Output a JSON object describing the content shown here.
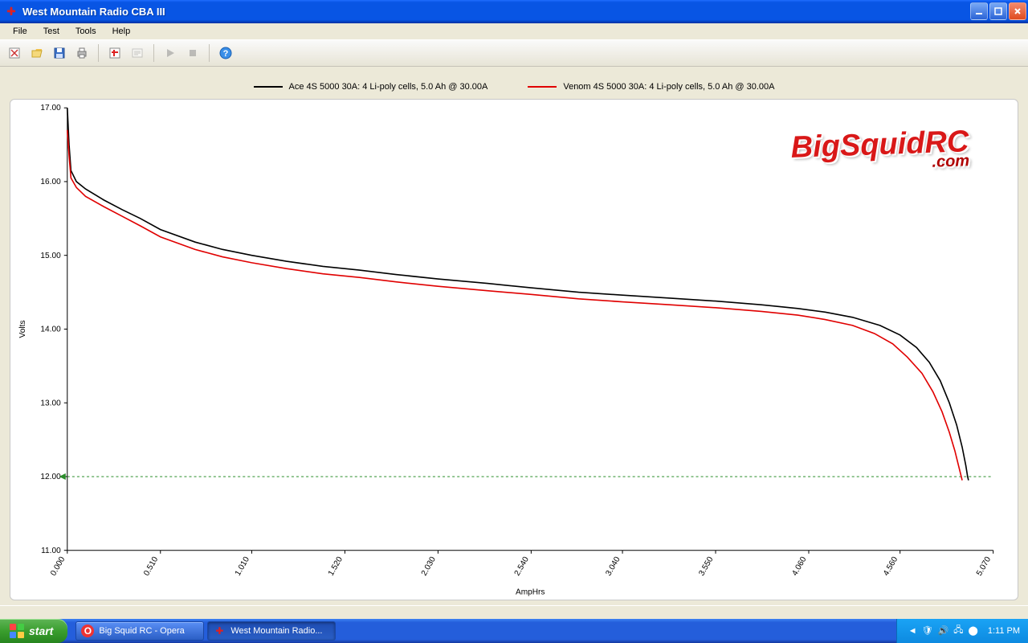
{
  "window": {
    "title": "West Mountain Radio CBA III",
    "menus": [
      "File",
      "Test",
      "Tools",
      "Help"
    ]
  },
  "toolbar": {
    "new": "new",
    "open": "open",
    "save": "save",
    "print": "print",
    "overlay": "overlay",
    "labels": "labels",
    "play": "play",
    "stop": "stop",
    "help": "help"
  },
  "legend": {
    "series": [
      {
        "label": "Ace 4S 5000 30A: 4 Li-poly cells, 5.0 Ah @ 30.00A",
        "color": "#000000"
      },
      {
        "label": "Venom 4S 5000 30A: 4 Li-poly cells, 5.0 Ah @ 30.00A",
        "color": "#e00000"
      }
    ]
  },
  "chart": {
    "type": "line",
    "xlabel": "AmpHrs",
    "ylabel": "Volts",
    "background": "#ffffff",
    "grid_color": "#d9d9d9",
    "cutoff_line_color": "#2a8c2a",
    "cutoff_y": 12.0,
    "xlim": [
      0.0,
      5.07
    ],
    "xticks": [
      0.0,
      0.51,
      1.01,
      1.52,
      2.03,
      2.54,
      3.04,
      3.55,
      4.06,
      4.56,
      5.07
    ],
    "ylim": [
      11.0,
      17.0
    ],
    "yticks": [
      11.0,
      12.0,
      13.0,
      14.0,
      15.0,
      16.0,
      17.0
    ],
    "series": [
      {
        "name": "ace",
        "color": "#000000",
        "width": 1.6,
        "points": [
          [
            0.0,
            17.0
          ],
          [
            0.01,
            16.5
          ],
          [
            0.02,
            16.15
          ],
          [
            0.05,
            16.0
          ],
          [
            0.1,
            15.9
          ],
          [
            0.2,
            15.75
          ],
          [
            0.3,
            15.62
          ],
          [
            0.4,
            15.5
          ],
          [
            0.51,
            15.35
          ],
          [
            0.7,
            15.18
          ],
          [
            0.85,
            15.08
          ],
          [
            1.01,
            15.0
          ],
          [
            1.2,
            14.92
          ],
          [
            1.4,
            14.85
          ],
          [
            1.6,
            14.8
          ],
          [
            1.8,
            14.74
          ],
          [
            2.03,
            14.68
          ],
          [
            2.3,
            14.62
          ],
          [
            2.54,
            14.56
          ],
          [
            2.8,
            14.5
          ],
          [
            3.04,
            14.46
          ],
          [
            3.3,
            14.42
          ],
          [
            3.55,
            14.38
          ],
          [
            3.8,
            14.33
          ],
          [
            4.0,
            14.28
          ],
          [
            4.15,
            14.23
          ],
          [
            4.3,
            14.16
          ],
          [
            4.45,
            14.05
          ],
          [
            4.56,
            13.92
          ],
          [
            4.65,
            13.75
          ],
          [
            4.72,
            13.55
          ],
          [
            4.78,
            13.3
          ],
          [
            4.83,
            13.0
          ],
          [
            4.87,
            12.7
          ],
          [
            4.9,
            12.4
          ],
          [
            4.92,
            12.15
          ],
          [
            4.93,
            12.0
          ],
          [
            4.935,
            11.95
          ]
        ]
      },
      {
        "name": "venom",
        "color": "#e00000",
        "width": 1.6,
        "points": [
          [
            0.0,
            16.7
          ],
          [
            0.01,
            16.35
          ],
          [
            0.02,
            16.05
          ],
          [
            0.05,
            15.92
          ],
          [
            0.1,
            15.8
          ],
          [
            0.2,
            15.66
          ],
          [
            0.3,
            15.53
          ],
          [
            0.4,
            15.4
          ],
          [
            0.51,
            15.25
          ],
          [
            0.7,
            15.08
          ],
          [
            0.85,
            14.98
          ],
          [
            1.01,
            14.9
          ],
          [
            1.2,
            14.82
          ],
          [
            1.4,
            14.75
          ],
          [
            1.6,
            14.7
          ],
          [
            1.8,
            14.64
          ],
          [
            2.03,
            14.58
          ],
          [
            2.3,
            14.52
          ],
          [
            2.54,
            14.47
          ],
          [
            2.8,
            14.41
          ],
          [
            3.04,
            14.37
          ],
          [
            3.3,
            14.33
          ],
          [
            3.55,
            14.29
          ],
          [
            3.8,
            14.24
          ],
          [
            4.0,
            14.19
          ],
          [
            4.15,
            14.13
          ],
          [
            4.3,
            14.05
          ],
          [
            4.42,
            13.94
          ],
          [
            4.52,
            13.8
          ],
          [
            4.6,
            13.62
          ],
          [
            4.68,
            13.4
          ],
          [
            4.74,
            13.15
          ],
          [
            4.79,
            12.88
          ],
          [
            4.83,
            12.6
          ],
          [
            4.86,
            12.35
          ],
          [
            4.88,
            12.15
          ],
          [
            4.895,
            12.0
          ],
          [
            4.9,
            11.95
          ]
        ]
      }
    ]
  },
  "watermark": {
    "main": "BigSquidRC",
    "sub": ".com"
  },
  "taskbar": {
    "start": "start",
    "items": [
      {
        "label": "Big Squid RC - Opera",
        "icon": "O",
        "icon_bg": "#e33"
      },
      {
        "label": "West Mountain Radio...",
        "icon": "✚",
        "icon_bg": "#d22"
      }
    ],
    "clock": "1:11 PM"
  }
}
